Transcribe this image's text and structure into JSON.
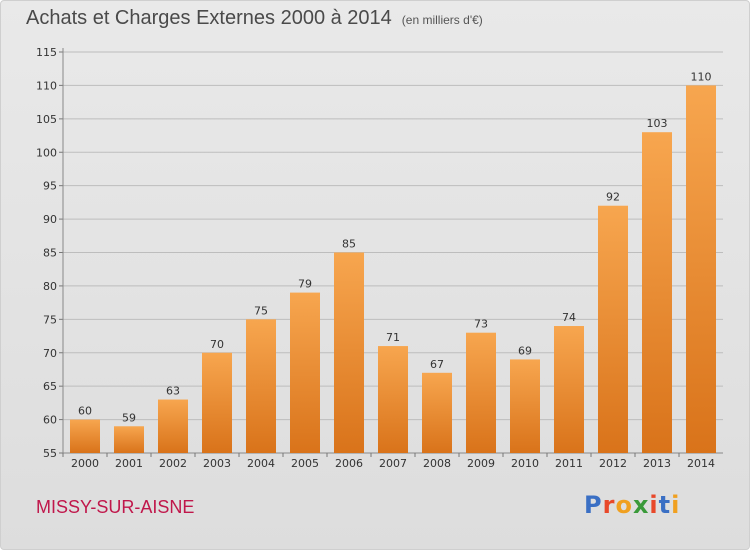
{
  "header": {
    "title": "Achats et Charges Externes 2000 à 2014",
    "subtitle": "(en milliers d'€)"
  },
  "footer": {
    "place": "MISSY-SUR-AISNE",
    "logo": {
      "text": "Proxiti",
      "colors": [
        "#3a6fc4",
        "#e8482a",
        "#f0a020",
        "#3a9a3a",
        "#e8482a",
        "#3a6fc4",
        "#f0a020"
      ]
    }
  },
  "colors": {
    "bar_light": "#f7a64f",
    "bar_dark": "#d9731a",
    "grid": "#bdbdbd"
  },
  "chart_data": {
    "type": "bar",
    "title": "Achats et Charges Externes 2000 à 2014",
    "subtitle": "(en milliers d'€)",
    "categories": [
      "2000",
      "2001",
      "2002",
      "2003",
      "2004",
      "2005",
      "2006",
      "2007",
      "2008",
      "2009",
      "2010",
      "2011",
      "2012",
      "2013",
      "2014"
    ],
    "values": [
      60,
      59,
      63,
      70,
      75,
      79,
      85,
      71,
      67,
      73,
      69,
      74,
      92,
      103,
      110
    ],
    "ylim": [
      55,
      115
    ],
    "yticks": [
      55,
      60,
      65,
      70,
      75,
      80,
      85,
      90,
      95,
      100,
      105,
      110,
      115
    ],
    "grid": true,
    "xlabel": "",
    "ylabel": ""
  }
}
